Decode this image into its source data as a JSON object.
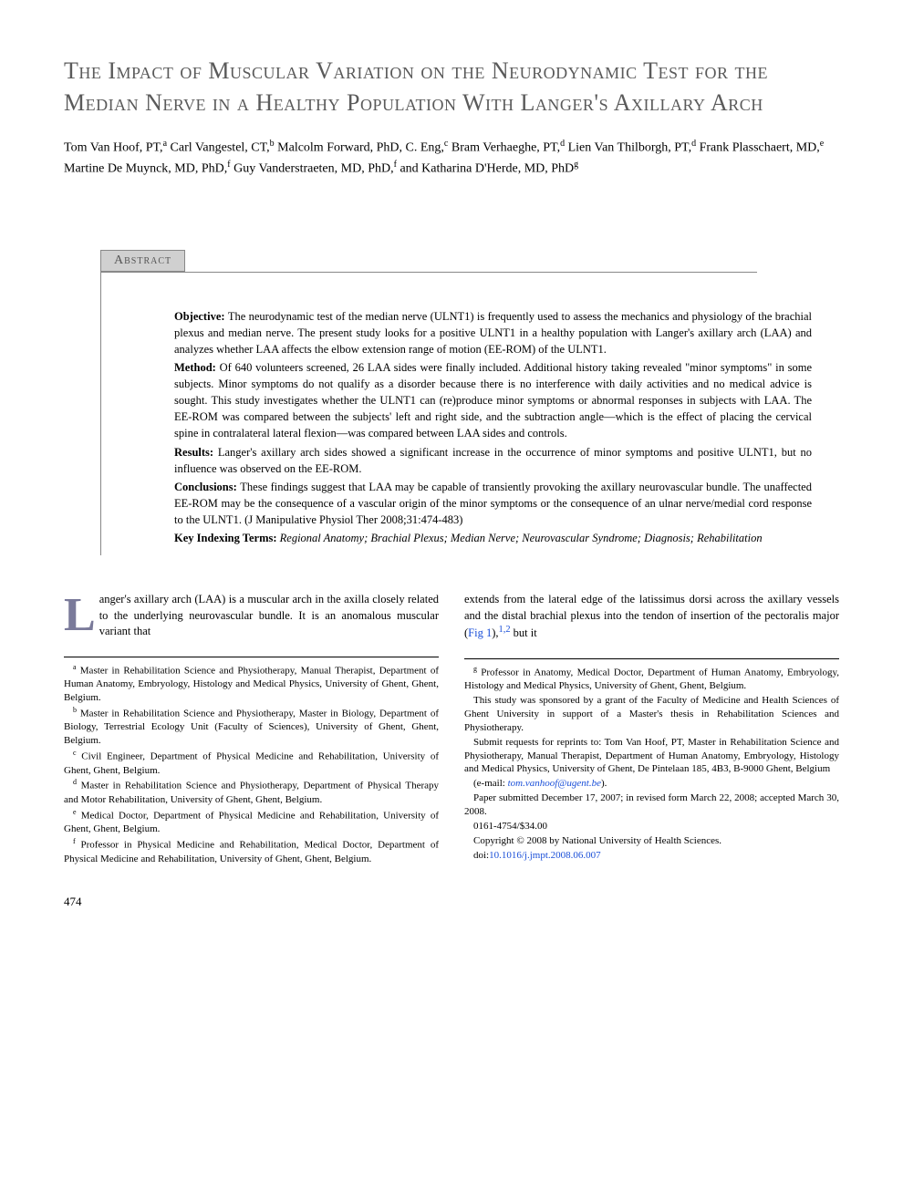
{
  "title": "The Impact of Muscular Variation on the Neurodynamic Test for the Median Nerve in a Healthy Population With Langer's Axillary Arch",
  "authors_html": "Tom Van Hoof, PT,<sup>a</sup> Carl Vangestel, CT,<sup>b</sup> Malcolm Forward, PhD, C. Eng,<sup>c</sup> Bram Verhaeghe, PT,<sup>d</sup> Lien Van Thilborgh, PT,<sup>d</sup> Frank Plasschaert, MD,<sup>e</sup> Martine De Muynck, MD, PhD,<sup>f</sup> Guy Vanderstraeten, MD, PhD,<sup>f</sup> and Katharina D'Herde, MD, PhD<sup>g</sup>",
  "abstract": {
    "label": "Abstract",
    "objective": "The neurodynamic test of the median nerve (ULNT1) is frequently used to assess the mechanics and physiology of the brachial plexus and median nerve. The present study looks for a positive ULNT1 in a healthy population with Langer's axillary arch (LAA) and analyzes whether LAA affects the elbow extension range of motion (EE-ROM) of the ULNT1.",
    "method": "Of 640 volunteers screened, 26 LAA sides were finally included. Additional history taking revealed \"minor symptoms\" in some subjects. Minor symptoms do not qualify as a disorder because there is no interference with daily activities and no medical advice is sought. This study investigates whether the ULNT1 can (re)produce minor symptoms or abnormal responses in subjects with LAA. The EE-ROM was compared between the subjects' left and right side, and the subtraction angle—which is the effect of placing the cervical spine in contralateral lateral flexion—was compared between LAA sides and controls.",
    "results": "Langer's axillary arch sides showed a significant increase in the occurrence of minor symptoms and positive ULNT1, but no influence was observed on the EE-ROM.",
    "conclusions": "These findings suggest that LAA may be capable of transiently provoking the axillary neurovascular bundle. The unaffected EE-ROM may be the consequence of a vascular origin of the minor symptoms or the consequence of an ulnar nerve/medial cord response to the ULNT1. (J Manipulative Physiol Ther 2008;31:474-483)",
    "key_terms_label": "Key Indexing Terms:",
    "key_terms": "Regional Anatomy; Brachial Plexus; Median Nerve; Neurovascular Syndrome; Diagnosis; Rehabilitation"
  },
  "intro": {
    "dropcap": "L",
    "left_text": "anger's axillary arch (LAA) is a muscular arch in the axilla closely related to the underlying neurovascular bundle. It is an anomalous muscular variant that",
    "right_text_pre": "extends from the lateral edge of the latissimus dorsi across the axillary vessels and the distal brachial plexus into the tendon of insertion of the pectoralis major (",
    "fig_ref": "Fig 1",
    "right_text_post": "),",
    "cite": "1,2",
    "right_text_end": " but it"
  },
  "footnotes_left": [
    "<sup>a</sup> Master in Rehabilitation Science and Physiotherapy, Manual Therapist, Department of Human Anatomy, Embryology, Histology and Medical Physics, University of Ghent, Ghent, Belgium.",
    "<sup>b</sup> Master in Rehabilitation Science and Physiotherapy, Master in Biology, Department of Biology, Terrestrial Ecology Unit (Faculty of Sciences), University of Ghent, Ghent, Belgium.",
    "<sup>c</sup> Civil Engineer, Department of Physical Medicine and Rehabilitation, University of Ghent, Ghent, Belgium.",
    "<sup>d</sup> Master in Rehabilitation Science and Physiotherapy, Department of Physical Therapy and Motor Rehabilitation, University of Ghent, Ghent, Belgium.",
    "<sup>e</sup> Medical Doctor, Department of Physical Medicine and Rehabilitation, University of Ghent, Ghent, Belgium.",
    "<sup>f</sup> Professor in Physical Medicine and Rehabilitation, Medical Doctor, Department of Physical Medicine and Rehabilitation, University of Ghent, Ghent, Belgium."
  ],
  "footnotes_right": [
    "<sup>g</sup> Professor in Anatomy, Medical Doctor, Department of Human Anatomy, Embryology, Histology and Medical Physics, University of Ghent, Ghent, Belgium.",
    "This study was sponsored by a grant of the Faculty of Medicine and Health Sciences of Ghent University in support of a Master's thesis in Rehabilitation Sciences and Physiotherapy.",
    "Submit requests for reprints to: Tom Van Hoof, PT, Master in Rehabilitation Science and Physiotherapy, Manual Therapist, Department of Human Anatomy, Embryology, Histology and Medical Physics, University of Ghent, De Pintelaan 185, 4B3, B-9000 Ghent, Belgium"
  ],
  "email_label": "(e-mail: ",
  "email": "tom.vanhoof@ugent.be",
  "email_close": ").",
  "paper_dates": "Paper submitted December 17, 2007; in revised form March 22, 2008; accepted March 30, 2008.",
  "issn": "0161-4754/$34.00",
  "copyright": "Copyright © 2008 by National University of Health Sciences.",
  "doi_label": "doi:",
  "doi": "10.1016/j.jmpt.2008.06.007",
  "page_number": "474",
  "colors": {
    "title_color": "#5a5a5a",
    "text_color": "#000000",
    "link_color": "#1a4fd8",
    "abstract_bg": "#d0d0d0",
    "dropcap_color": "#7a7a9a",
    "background": "#ffffff"
  },
  "typography": {
    "title_fontsize": 26,
    "body_fontsize": 12.5,
    "footnote_fontsize": 11,
    "font_family": "Georgia, Times New Roman, serif"
  }
}
